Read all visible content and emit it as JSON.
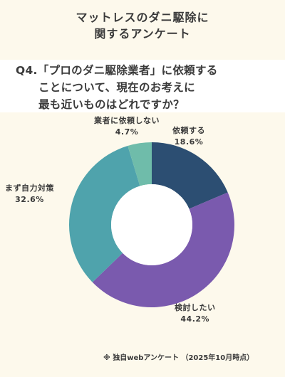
{
  "header": {
    "title_line1": "マットレスのダニ駆除に",
    "title_line2": "関するアンケート"
  },
  "question": {
    "line1": "Q4.「プロのダニ駆除業者」に依頼する",
    "line2": "ことについて、現在のお考えに",
    "line3": "最も近いものはどれですか？"
  },
  "colors": {
    "background": "#FDF9EC",
    "question_bg": "#FFFFFF",
    "slice_request": "#2C4E72",
    "slice_consider": "#7A5AAE",
    "slice_self": "#4FA3AC",
    "slice_no_request": "#6FBCAA"
  },
  "chart_data": {
    "type": "pie",
    "donut": true,
    "categories": [
      "依頼する",
      "検討したい",
      "まず自力対策",
      "業者に依頼しない"
    ],
    "values": [
      18.6,
      44.2,
      32.6,
      4.7
    ],
    "value_labels": [
      "18.6%",
      "44.2%",
      "32.6%",
      "4.7%"
    ],
    "start": "12 o'clock, clockwise"
  },
  "footnote": "※ 独自webアンケート （2025年10月時点）"
}
